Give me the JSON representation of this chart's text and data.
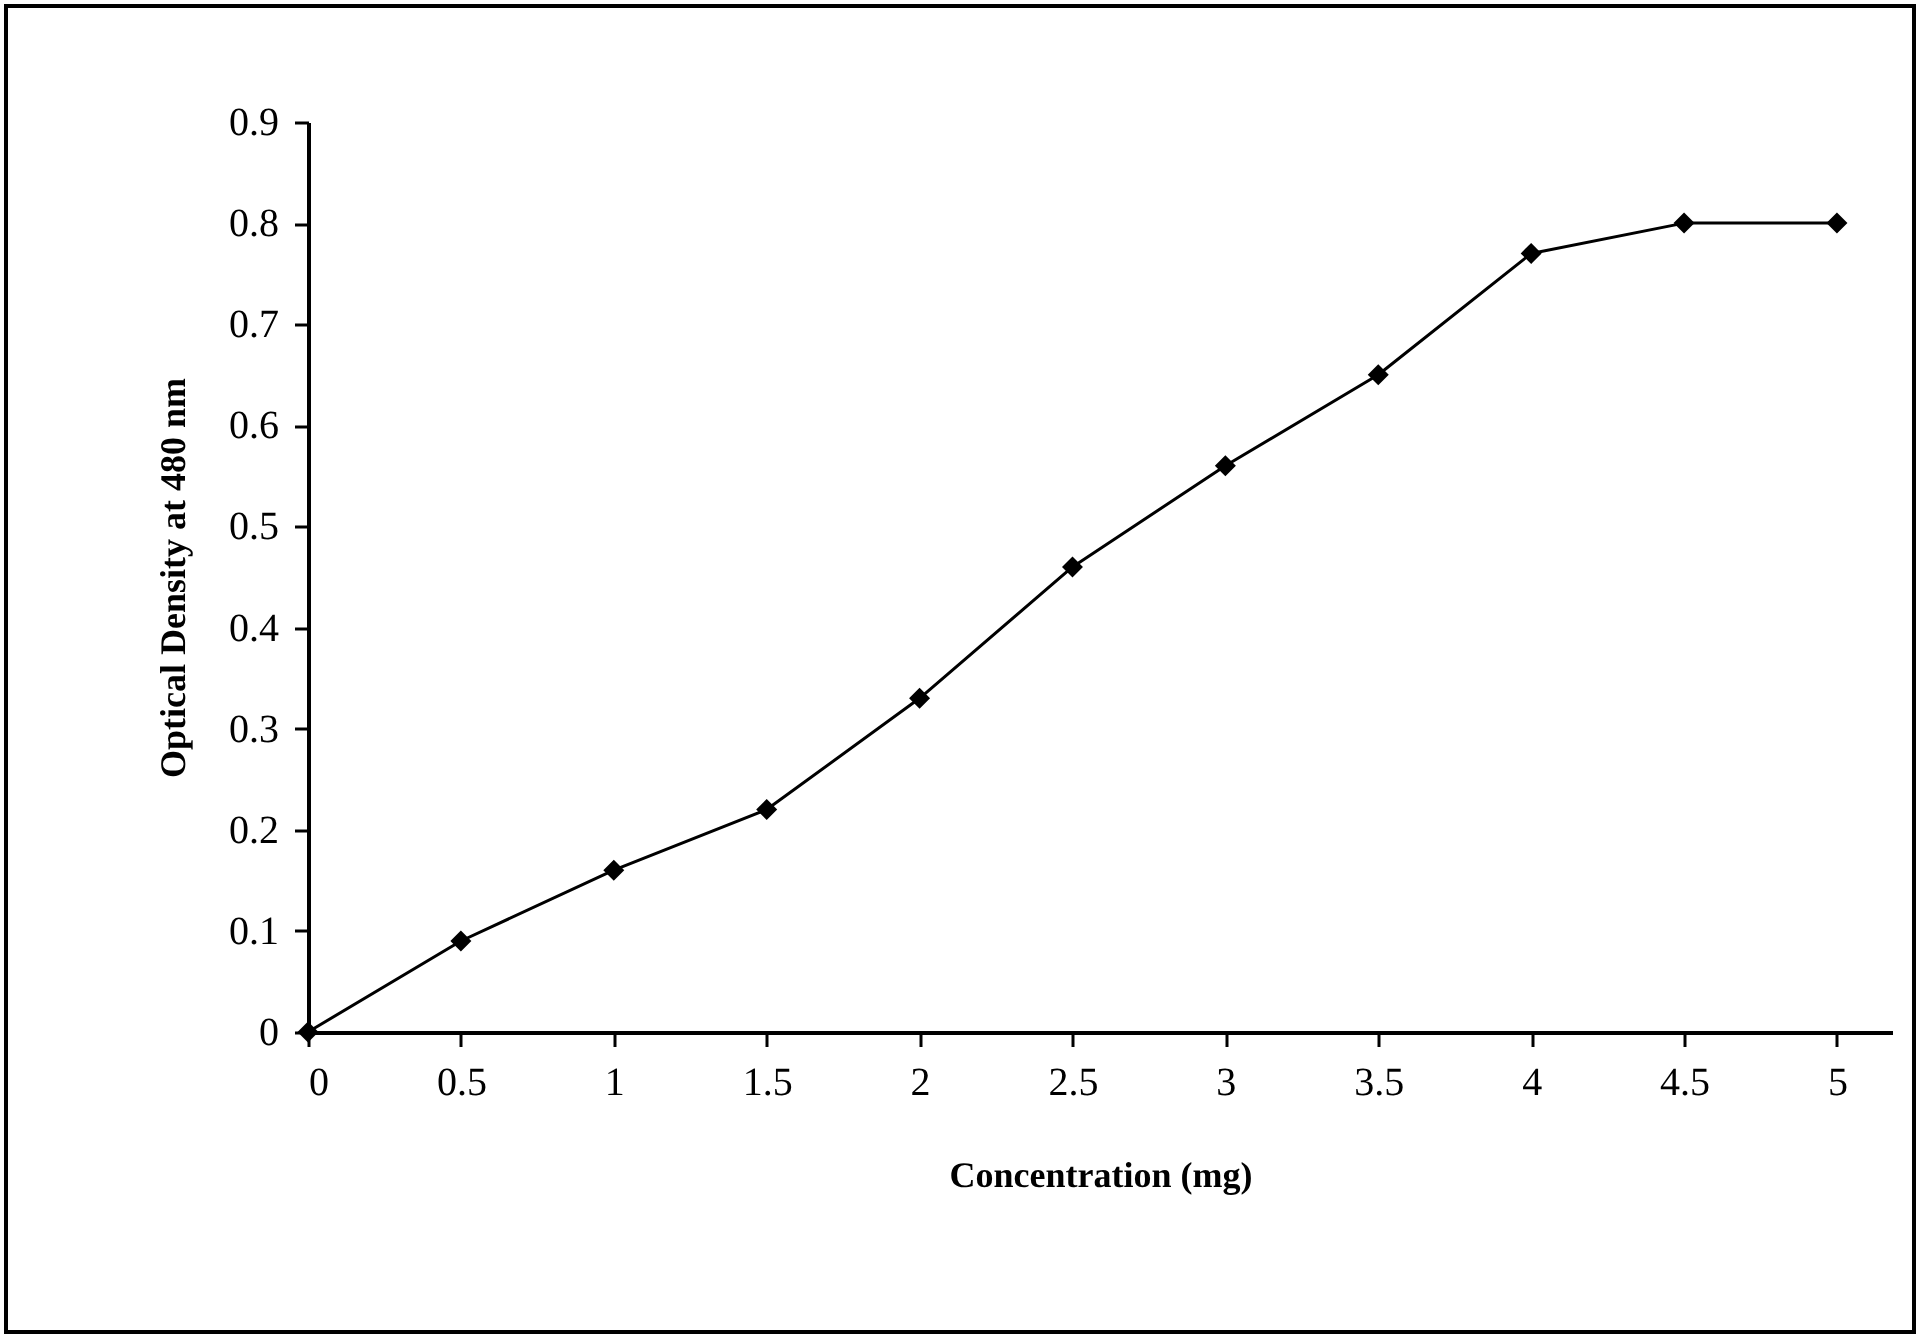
{
  "chart_data": {
    "type": "line",
    "xlabel": "Concentration (mg)",
    "ylabel": "Optical Density at 480 nm",
    "x": [
      0,
      0.5,
      1,
      1.5,
      2,
      2.5,
      3,
      3.5,
      4,
      4.5,
      5
    ],
    "series": [
      {
        "color": "#000000",
        "values": [
          0,
          0.09,
          0.16,
          0.22,
          0.33,
          0.46,
          0.56,
          0.65,
          0.77,
          0.8,
          0.8
        ]
      }
    ],
    "xlim": [
      0,
      5.18
    ],
    "xticks": [
      0,
      0.5,
      1,
      1.5,
      2,
      2.5,
      3,
      3.5,
      4,
      4.5,
      5
    ],
    "ylim": [
      0,
      0.9
    ],
    "yticks": [
      0,
      0.1,
      0.2,
      0.3,
      0.4,
      0.5,
      0.6,
      0.7,
      0.8,
      0.9
    ],
    "grid": false,
    "marker": "diamond",
    "line_style": "solid"
  }
}
